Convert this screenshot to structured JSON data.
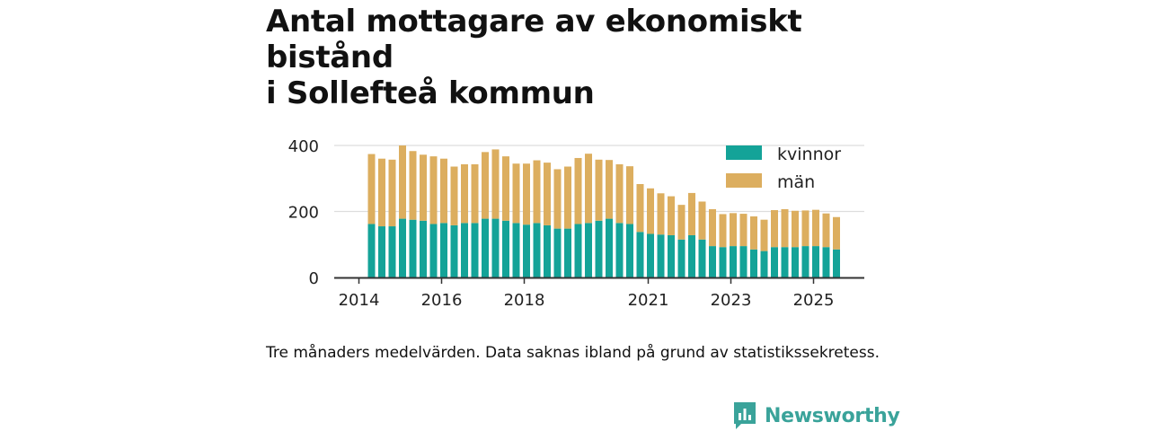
{
  "title_line1": "Antal mottagare av ekonomiskt bistånd",
  "title_line2": "i Sollefteå kommun",
  "caption": "Tre månaders medelvärden. Data saknas ibland på grund av statistikssekretess.",
  "brand": {
    "name": "Newsworthy",
    "icon": "newsworthy-logo-icon"
  },
  "colors": {
    "kvinnor": "#14a398",
    "man": "#dcae5f",
    "grid": "#dddddd",
    "axis": "#333333"
  },
  "chart_data": {
    "type": "bar",
    "stacked": true,
    "title": "Antal mottagare av ekonomiskt bistånd i Sollefteå kommun",
    "xlabel": "",
    "ylabel": "",
    "ylim": [
      0,
      400
    ],
    "yticks": [
      0,
      200,
      400
    ],
    "xticks": [
      {
        "label": "2014",
        "index": 0
      },
      {
        "label": "2016",
        "index": 8
      },
      {
        "label": "2018",
        "index": 16
      },
      {
        "label": "2021",
        "index": 28
      },
      {
        "label": "2023",
        "index": 36
      },
      {
        "label": "2025",
        "index": 44
      }
    ],
    "legend_position": "top-right",
    "series": [
      {
        "name": "kvinnor",
        "values": [
          162,
          155,
          155,
          178,
          175,
          172,
          162,
          165,
          158,
          165,
          165,
          178,
          178,
          172,
          165,
          160,
          165,
          158,
          148,
          148,
          162,
          165,
          172,
          178,
          165,
          162,
          138,
          132,
          130,
          128,
          115,
          128,
          115,
          95,
          92,
          95,
          95,
          85,
          80,
          92,
          92,
          92,
          95,
          95,
          92,
          85
        ]
      },
      {
        "name": "män",
        "values": [
          212,
          205,
          202,
          222,
          208,
          200,
          205,
          195,
          178,
          178,
          178,
          202,
          210,
          195,
          180,
          185,
          190,
          190,
          180,
          188,
          200,
          210,
          185,
          178,
          178,
          175,
          145,
          138,
          125,
          118,
          105,
          128,
          115,
          112,
          100,
          100,
          98,
          100,
          95,
          112,
          115,
          110,
          108,
          110,
          102,
          98
        ]
      }
    ],
    "period_count": 46
  }
}
